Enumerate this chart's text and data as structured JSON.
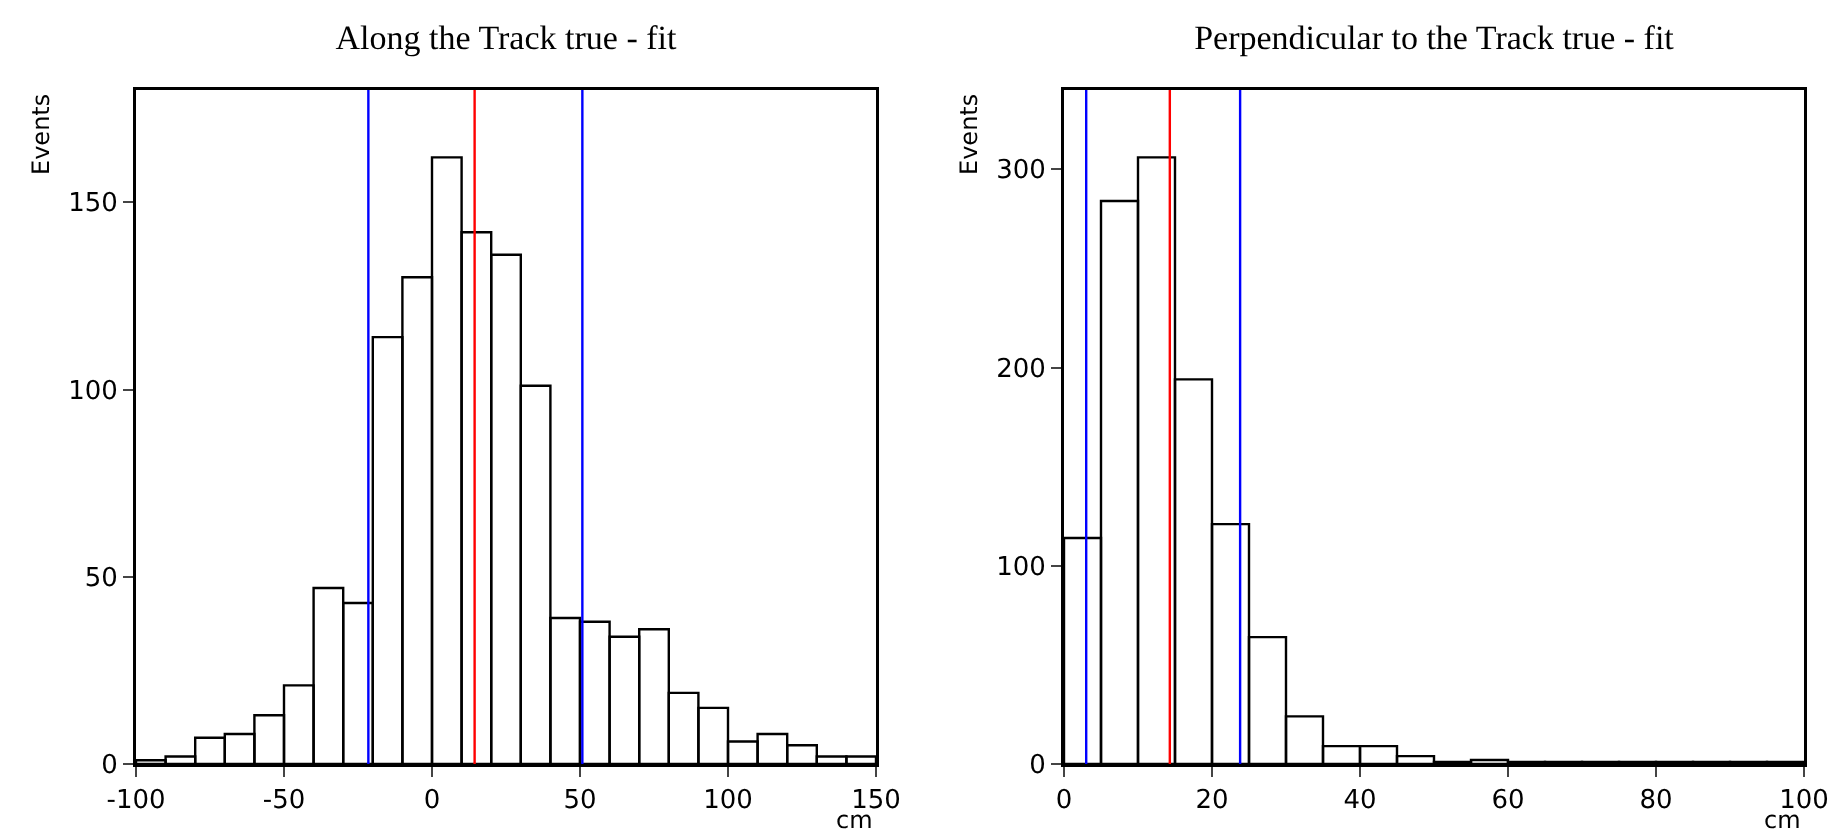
{
  "chart_data": [
    {
      "type": "histogram",
      "title": "Along the Track true - fit",
      "xlabel": "cm",
      "ylabel": "Events",
      "bins": [
        -100,
        -90,
        -80,
        -70,
        -60,
        -50,
        -40,
        -30,
        -20,
        -10,
        0,
        10,
        20,
        30,
        40,
        50,
        60,
        70,
        80,
        90,
        100,
        110,
        120,
        130,
        140,
        150
      ],
      "values": [
        1,
        2,
        7,
        8,
        13,
        21,
        47,
        43,
        114,
        130,
        162,
        142,
        136,
        101,
        39,
        38,
        34,
        36,
        19,
        15,
        6,
        8,
        5,
        2,
        2
      ],
      "color": "#000000",
      "xlim": [
        -100,
        150
      ],
      "xticks": [
        -100,
        -50,
        0,
        50,
        100,
        150
      ],
      "ylim": [
        0,
        180
      ],
      "yticks": [
        0,
        50,
        100,
        150
      ],
      "grid": false,
      "ref_lines": [
        {
          "axis": "x",
          "value": -21.5,
          "color": "#0000ff"
        },
        {
          "axis": "x",
          "value": 14.4,
          "color": "#ff0000"
        },
        {
          "axis": "x",
          "value": 50.8,
          "color": "#0000ff"
        }
      ]
    },
    {
      "type": "histogram",
      "title": "Perpendicular to the Track true - fit",
      "xlabel": "cm",
      "ylabel": "Events",
      "bins": [
        0,
        5,
        10,
        15,
        20,
        25,
        30,
        35,
        40,
        45,
        50,
        55,
        60,
        65,
        70,
        75,
        80,
        85,
        90,
        95,
        100
      ],
      "values": [
        114,
        284,
        306,
        194,
        121,
        64,
        24,
        9,
        9,
        4,
        1,
        2,
        1,
        1,
        1,
        1,
        1,
        1,
        1,
        1
      ],
      "color": "#000000",
      "xlim": [
        0,
        100
      ],
      "xticks": [
        0,
        20,
        40,
        60,
        80,
        100
      ],
      "ylim": [
        0,
        340
      ],
      "yticks": [
        0,
        100,
        200,
        300
      ],
      "grid": false,
      "ref_lines": [
        {
          "axis": "x",
          "value": 3.0,
          "color": "#0000ff"
        },
        {
          "axis": "x",
          "value": 14.3,
          "color": "#ff0000"
        },
        {
          "axis": "x",
          "value": 23.8,
          "color": "#0000ff"
        }
      ]
    }
  ]
}
